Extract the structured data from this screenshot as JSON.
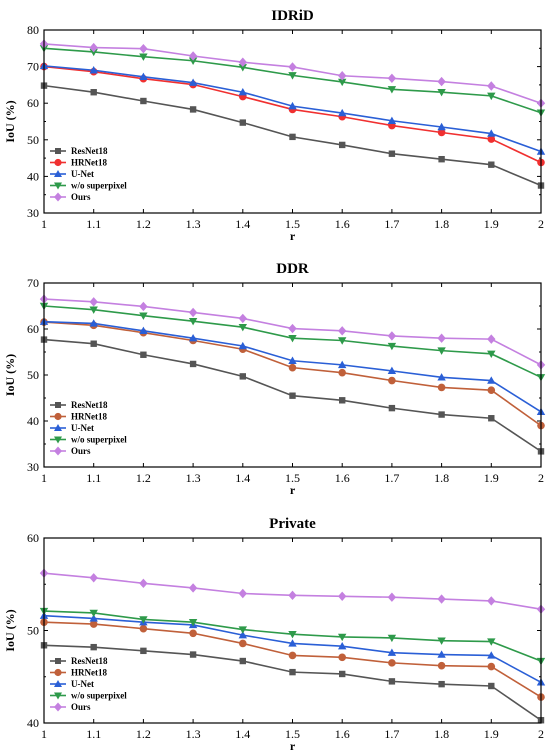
{
  "chart_data": [
    {
      "type": "line",
      "title": "IDRiD",
      "xlabel": "r",
      "ylabel": "IoU (%)",
      "x": [
        1,
        1.1,
        1.2,
        1.3,
        1.4,
        1.5,
        1.6,
        1.7,
        1.8,
        1.9,
        2
      ],
      "x_tick_labels": [
        "1",
        "1.1",
        "1.2",
        "1.3",
        "1.4",
        "1.5",
        "1.6",
        "1.7",
        "1.8",
        "1.9",
        "2"
      ],
      "ylim": [
        30,
        80
      ],
      "yticks": [
        30,
        40,
        50,
        60,
        70,
        80
      ],
      "legend_position": "bottom-left",
      "series": [
        {
          "name": "ResNet18",
          "color": "#555555",
          "marker": "square",
          "values": [
            64.8,
            63.0,
            60.6,
            58.3,
            54.7,
            50.8,
            48.6,
            46.2,
            44.7,
            43.2,
            37.5
          ]
        },
        {
          "name": "HRNet18",
          "color": "#f03030",
          "marker": "circle",
          "values": [
            70.0,
            68.6,
            66.7,
            65.1,
            61.8,
            58.3,
            56.3,
            53.9,
            52.0,
            50.2,
            43.8
          ]
        },
        {
          "name": "U-Net",
          "color": "#2a5fd6",
          "marker": "triangle-up",
          "values": [
            70.2,
            69.0,
            67.2,
            65.6,
            63.0,
            59.2,
            57.3,
            55.2,
            53.5,
            51.7,
            46.8
          ]
        },
        {
          "name": "w/o superpixel",
          "color": "#2e9a4a",
          "marker": "triangle-down",
          "values": [
            75.0,
            74.0,
            72.7,
            71.6,
            69.8,
            67.6,
            65.8,
            63.8,
            63.0,
            62.0,
            57.4
          ]
        },
        {
          "name": "Ours",
          "color": "#c480e0",
          "marker": "diamond",
          "values": [
            76.2,
            75.2,
            74.9,
            72.9,
            71.2,
            69.9,
            67.5,
            66.8,
            65.9,
            64.7,
            60.0
          ]
        }
      ]
    },
    {
      "type": "line",
      "title": "DDR",
      "xlabel": "r",
      "ylabel": "IoU (%)",
      "x": [
        1,
        1.1,
        1.2,
        1.3,
        1.4,
        1.5,
        1.6,
        1.7,
        1.8,
        1.9,
        2
      ],
      "x_tick_labels": [
        "1",
        "1.1",
        "1.2",
        "1.3",
        "1.4",
        "1.5",
        "1.6",
        "1.7",
        "1.8",
        "1.9",
        "2"
      ],
      "ylim": [
        30,
        70
      ],
      "yticks": [
        30,
        40,
        50,
        60,
        70
      ],
      "legend_position": "bottom-left",
      "series": [
        {
          "name": "ResNet18",
          "color": "#555555",
          "marker": "square",
          "values": [
            57.7,
            56.8,
            54.4,
            52.4,
            49.7,
            45.5,
            44.5,
            42.8,
            41.4,
            40.6,
            33.4
          ]
        },
        {
          "name": "HRNet18",
          "color": "#c0603a",
          "marker": "circle",
          "values": [
            61.5,
            60.8,
            59.2,
            57.5,
            55.6,
            51.6,
            50.5,
            48.8,
            47.3,
            46.7,
            39.0
          ]
        },
        {
          "name": "U-Net",
          "color": "#2a5fd6",
          "marker": "triangle-up",
          "values": [
            61.6,
            61.2,
            59.6,
            58.0,
            56.3,
            53.1,
            52.2,
            50.9,
            49.5,
            48.8,
            42.0
          ]
        },
        {
          "name": "w/o superpixel",
          "color": "#2e9a4a",
          "marker": "triangle-down",
          "values": [
            65.0,
            64.2,
            62.9,
            61.7,
            60.4,
            58.0,
            57.5,
            56.3,
            55.3,
            54.6,
            49.5
          ]
        },
        {
          "name": "Ours",
          "color": "#c480e0",
          "marker": "diamond",
          "values": [
            66.5,
            65.9,
            64.9,
            63.6,
            62.3,
            60.1,
            59.6,
            58.5,
            58.0,
            57.8,
            52.2
          ]
        }
      ]
    },
    {
      "type": "line",
      "title": "Private",
      "xlabel": "r",
      "ylabel": "IoU (%)",
      "x": [
        1,
        1.1,
        1.2,
        1.3,
        1.4,
        1.5,
        1.6,
        1.7,
        1.8,
        1.9,
        2
      ],
      "x_tick_labels": [
        "1",
        "1.1",
        "1.2",
        "1.3",
        "1.4",
        "1.5",
        "1.6",
        "1.7",
        "1.8",
        "1.9",
        "2"
      ],
      "ylim": [
        40,
        60
      ],
      "yticks": [
        40,
        50,
        60
      ],
      "legend_position": "bottom-left",
      "series": [
        {
          "name": "ResNet18",
          "color": "#555555",
          "marker": "square",
          "values": [
            48.4,
            48.2,
            47.8,
            47.4,
            46.7,
            45.5,
            45.3,
            44.5,
            44.2,
            44.0,
            40.3
          ]
        },
        {
          "name": "HRNet18",
          "color": "#c0603a",
          "marker": "circle",
          "values": [
            50.9,
            50.7,
            50.2,
            49.7,
            48.6,
            47.3,
            47.1,
            46.5,
            46.2,
            46.1,
            42.8
          ]
        },
        {
          "name": "U-Net",
          "color": "#2a5fd6",
          "marker": "triangle-up",
          "values": [
            51.6,
            51.3,
            50.9,
            50.6,
            49.5,
            48.6,
            48.3,
            47.6,
            47.4,
            47.3,
            44.4
          ]
        },
        {
          "name": "w/o superpixel",
          "color": "#2e9a4a",
          "marker": "triangle-down",
          "values": [
            52.1,
            51.9,
            51.2,
            50.9,
            50.1,
            49.6,
            49.3,
            49.2,
            48.9,
            48.8,
            46.7
          ]
        },
        {
          "name": "Ours",
          "color": "#c480e0",
          "marker": "diamond",
          "values": [
            56.2,
            55.7,
            55.1,
            54.6,
            54.0,
            53.8,
            53.7,
            53.6,
            53.4,
            53.2,
            52.3
          ]
        }
      ]
    }
  ]
}
